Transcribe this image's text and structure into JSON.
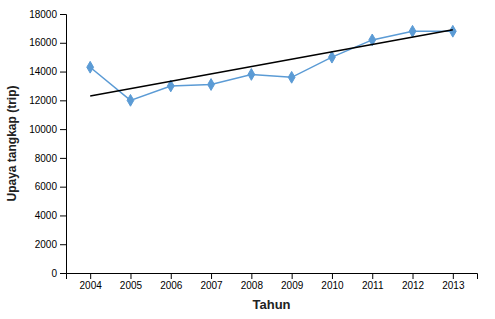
{
  "chart_data": {
    "type": "line",
    "xlabel": "Tahun",
    "ylabel": "Upaya tangkap (trip)",
    "x": [
      2004,
      2005,
      2006,
      2007,
      2008,
      2009,
      2010,
      2011,
      2012,
      2013
    ],
    "series": [
      {
        "color": "#5B9BD5",
        "marker": "diamond",
        "values": [
          14300,
          12000,
          13000,
          13100,
          13800,
          13600,
          15000,
          16200,
          16800,
          16800
        ]
      },
      {
        "color": "#000000",
        "x": [
          2004,
          2013
        ],
        "values": [
          12300,
          16900
        ]
      }
    ],
    "xlim": [
      2003.4,
      2013.6
    ],
    "xticks": [
      2004,
      2005,
      2006,
      2007,
      2008,
      2009,
      2010,
      2011,
      2012,
      2013
    ],
    "ylim": [
      0,
      18000
    ],
    "yticks": [
      0,
      2000,
      4000,
      6000,
      8000,
      10000,
      12000,
      14000,
      16000,
      18000
    ],
    "grid": false
  }
}
